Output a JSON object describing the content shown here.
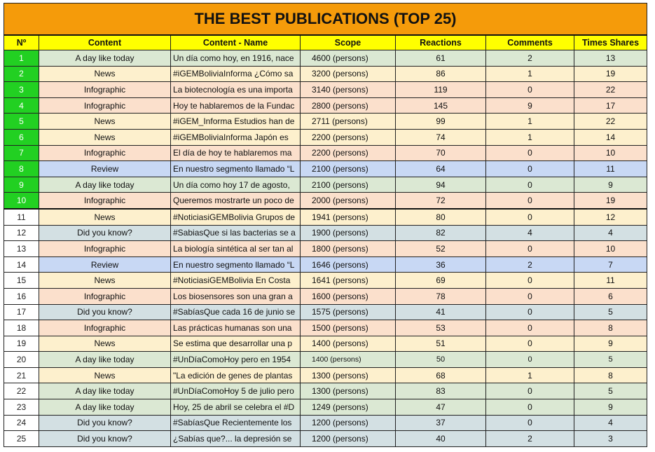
{
  "title": "THE BEST PUBLICATIONS (TOP 25)",
  "colors": {
    "title_bg": "#f59b0a",
    "header_bg": "#ffff00",
    "top10_num_bg": "#22d022",
    "category_bg": {
      "A day like today": "#dbe8d3",
      "News": "#fdf0cd",
      "Infographic": "#fbe0cc",
      "Review": "#c8d8f4",
      "Did you know?": "#d3e0e3"
    }
  },
  "columns": [
    "Nº",
    "Content",
    "Content - Name",
    "Scope",
    "Reactions",
    "Comments",
    "Times Shares"
  ],
  "rows": [
    {
      "n": "1",
      "content": "A day like today",
      "name": "Un día como hoy, en 1916, nace",
      "scope": "4600 (persons)",
      "reactions": "61",
      "comments": "2",
      "shares": "13"
    },
    {
      "n": "2",
      "content": "News",
      "name": "#iGEMBoliviaInforma ¿Cómo sa",
      "scope": "3200 (persons)",
      "reactions": "86",
      "comments": "1",
      "shares": "19"
    },
    {
      "n": "3",
      "content": "Infographic",
      "name": "La biotecnología es una importa",
      "scope": "3140 (persons)",
      "reactions": "119",
      "comments": "0",
      "shares": "22"
    },
    {
      "n": "4",
      "content": "Infographic",
      "name": "Hoy te hablaremos de la Fundac",
      "scope": "2800 (persons)",
      "reactions": "145",
      "comments": "9",
      "shares": "17"
    },
    {
      "n": "5",
      "content": "News",
      "name": "#iGEM_Informa Estudios han de",
      "scope": "2711 (persons)",
      "reactions": "99",
      "comments": "1",
      "shares": "22"
    },
    {
      "n": "6",
      "content": "News",
      "name": "#iGEMBoliviaInforma Japón es",
      "scope": "2200 (persons)",
      "reactions": "74",
      "comments": "1",
      "shares": "14"
    },
    {
      "n": "7",
      "content": "Infographic",
      "name": "El día de hoy te hablaremos ma",
      "scope": "2200 (persons)",
      "reactions": "70",
      "comments": "0",
      "shares": "10"
    },
    {
      "n": "8",
      "content": "Review",
      "name": "En nuestro segmento llamado “L",
      "scope": "2100 (persons)",
      "reactions": "64",
      "comments": "0",
      "shares": "11"
    },
    {
      "n": "9",
      "content": "A day like today",
      "name": "Un día como hoy 17 de agosto,",
      "scope": "2100 (persons)",
      "reactions": "94",
      "comments": "0",
      "shares": "9"
    },
    {
      "n": "10",
      "content": "Infographic",
      "name": "Queremos mostrarte un poco de",
      "scope": "2000 (persons)",
      "reactions": "72",
      "comments": "0",
      "shares": "19"
    },
    {
      "n": "11",
      "content": "News",
      "name": "#NoticiasiGEMBolivia Grupos de",
      "scope": "1941 (persons)",
      "reactions": "80",
      "comments": "0",
      "shares": "12"
    },
    {
      "n": "12",
      "content": "Did you know?",
      "name": "#SabiasQue si las bacterias se a",
      "scope": "1900 (persons)",
      "reactions": "82",
      "comments": "4",
      "shares": "4"
    },
    {
      "n": "13",
      "content": "Infographic",
      "name": "La biología sintética al ser tan al",
      "scope": "1800 (persons)",
      "reactions": "52",
      "comments": "0",
      "shares": "10"
    },
    {
      "n": "14",
      "content": "Review",
      "name": "En nuestro segmento llamado “L",
      "scope": "1646 (persons)",
      "reactions": "36",
      "comments": "2",
      "shares": "7"
    },
    {
      "n": "15",
      "content": "News",
      "name": "#NoticiasiGEMBolivia En Costa",
      "scope": "1641 (persons)",
      "reactions": "69",
      "comments": "0",
      "shares": "11"
    },
    {
      "n": "16",
      "content": "Infographic",
      "name": "Los biosensores son una gran a",
      "scope": "1600 (persons)",
      "reactions": "78",
      "comments": "0",
      "shares": "6"
    },
    {
      "n": "17",
      "content": "Did you know?",
      "name": "#SabíasQue cada 16 de junio se",
      "scope": "1575 (persons)",
      "reactions": "41",
      "comments": "0",
      "shares": "5"
    },
    {
      "n": "18",
      "content": "Infographic",
      "name": "Las prácticas humanas son una",
      "scope": "1500 (persons)",
      "reactions": "53",
      "comments": "0",
      "shares": "8"
    },
    {
      "n": "19",
      "content": "News",
      "name": "Se estima que desarrollar una p",
      "scope": "1400 (persons)",
      "reactions": "51",
      "comments": "0",
      "shares": "9"
    },
    {
      "n": "20",
      "content": "A day like today",
      "name": "#UnDíaComoHoy pero en 1954",
      "scope": "1400 (persons)",
      "reactions": "50",
      "comments": "0",
      "shares": "5",
      "small": true
    },
    {
      "n": "21",
      "content": "News",
      "name": "\"La edición de genes de plantas",
      "scope": "1300 (persons)",
      "reactions": "68",
      "comments": "1",
      "shares": "8"
    },
    {
      "n": "22",
      "content": "A day like today",
      "name": "#UnDíaComoHoy 5 de julio pero",
      "scope": "1300 (persons)",
      "reactions": "83",
      "comments": "0",
      "shares": "5"
    },
    {
      "n": "23",
      "content": "A day like today",
      "name": "Hoy, 25 de abril se celebra el #D",
      "scope": "1249 (persons)",
      "reactions": "47",
      "comments": "0",
      "shares": "9"
    },
    {
      "n": "24",
      "content": "Did you know?",
      "name": "#SabíasQue Recientemente los",
      "scope": "1200 (persons)",
      "reactions": "37",
      "comments": "0",
      "shares": "4"
    },
    {
      "n": "25",
      "content": "Did you know?",
      "name": "¿Sabías que?... la depresión se",
      "scope": "1200 (persons)",
      "reactions": "40",
      "comments": "2",
      "shares": "3"
    }
  ]
}
